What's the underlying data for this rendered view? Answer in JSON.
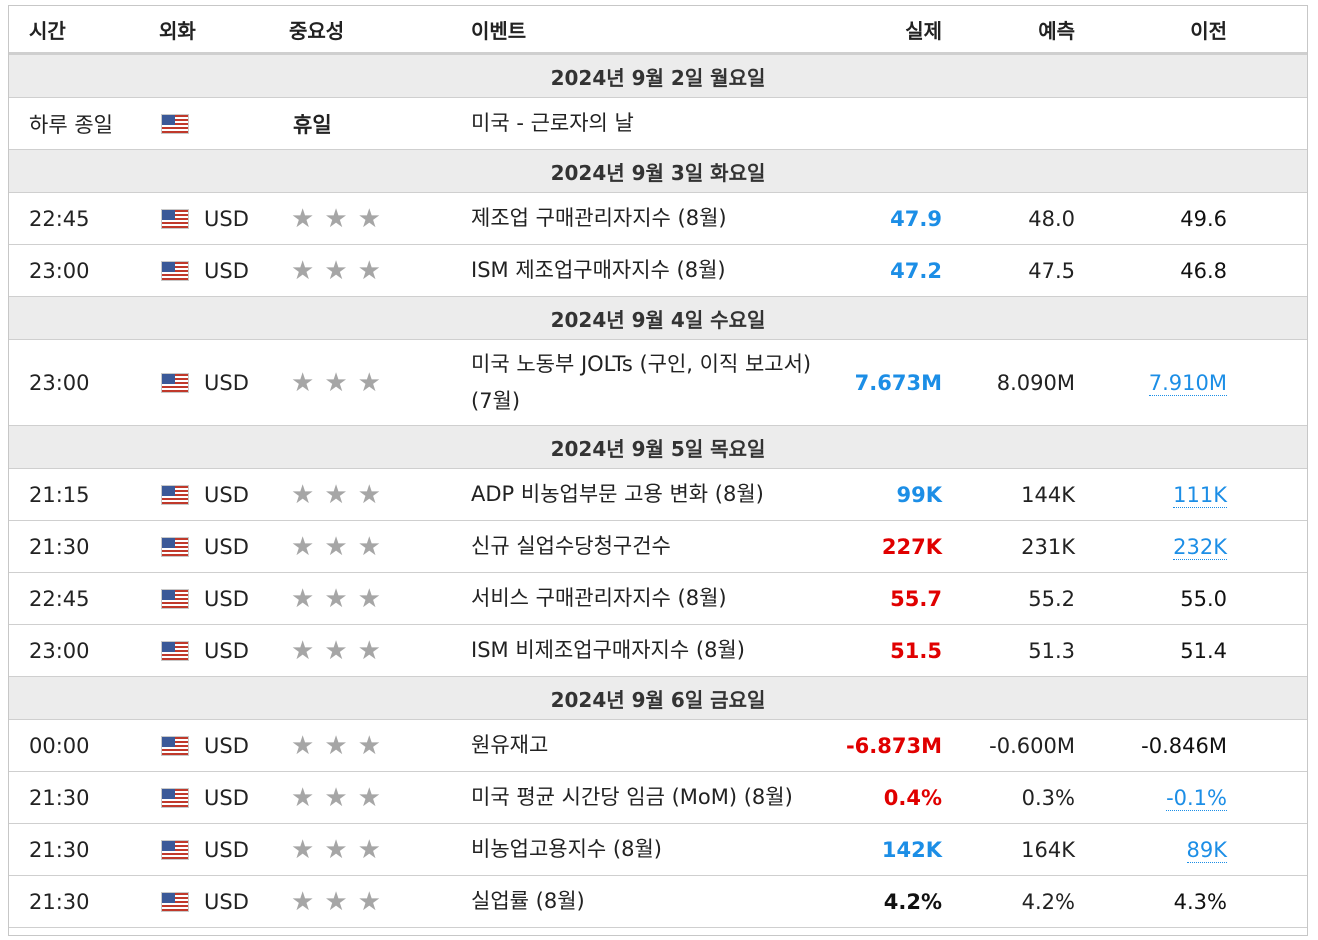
{
  "headers": {
    "time": "시간",
    "currency": "외화",
    "importance": "중요성",
    "event": "이벤트",
    "actual": "실제",
    "forecast": "예측",
    "previous": "이전"
  },
  "days": [
    {
      "date": "2024년 9월 2일 월요일",
      "events": [
        {
          "time": "하루 종일",
          "flag": "us-flag-icon",
          "currency": "",
          "holiday": "휴일",
          "event": "미국 - 근로자의 날",
          "actual": "",
          "actual_color": "",
          "forecast": "",
          "previous": "",
          "previous_link": false
        }
      ]
    },
    {
      "date": "2024년 9월 3일 화요일",
      "events": [
        {
          "time": "22:45",
          "flag": "us-flag-icon",
          "currency": "USD",
          "stars": 3,
          "event": "제조업 구매관리자지수 (8월)",
          "actual": "47.9",
          "actual_color": "#1c8ee6",
          "forecast": "48.0",
          "previous": "49.6",
          "previous_link": false
        },
        {
          "time": "23:00",
          "flag": "us-flag-icon",
          "currency": "USD",
          "stars": 3,
          "event": "ISM 제조업구매자지수 (8월)",
          "actual": "47.2",
          "actual_color": "#1c8ee6",
          "forecast": "47.5",
          "previous": "46.8",
          "previous_link": false
        }
      ]
    },
    {
      "date": "2024년 9월 4일 수요일",
      "events": [
        {
          "time": "23:00",
          "flag": "us-flag-icon",
          "currency": "USD",
          "stars": 3,
          "event": "미국 노동부 JOLTs (구인, 이직 보고서) (7월)",
          "actual": "7.673M",
          "actual_color": "#1c8ee6",
          "forecast": "8.090M",
          "previous": "7.910M",
          "previous_link": true,
          "tall": true
        }
      ]
    },
    {
      "date": "2024년 9월 5일 목요일",
      "events": [
        {
          "time": "21:15",
          "flag": "us-flag-icon",
          "currency": "USD",
          "stars": 3,
          "event": "ADP 비농업부문 고용 변화 (8월)",
          "actual": "99K",
          "actual_color": "#1c8ee6",
          "forecast": "144K",
          "previous": "111K",
          "previous_link": true
        },
        {
          "time": "21:30",
          "flag": "us-flag-icon",
          "currency": "USD",
          "stars": 3,
          "event": "신규 실업수당청구건수",
          "actual": "227K",
          "actual_color": "#e00000",
          "forecast": "231K",
          "previous": "232K",
          "previous_link": true
        },
        {
          "time": "22:45",
          "flag": "us-flag-icon",
          "currency": "USD",
          "stars": 3,
          "event": "서비스 구매관리자지수 (8월)",
          "actual": "55.7",
          "actual_color": "#e00000",
          "forecast": "55.2",
          "previous": "55.0",
          "previous_link": false
        },
        {
          "time": "23:00",
          "flag": "us-flag-icon",
          "currency": "USD",
          "stars": 3,
          "event": "ISM 비제조업구매자지수 (8월)",
          "actual": "51.5",
          "actual_color": "#e00000",
          "forecast": "51.3",
          "previous": "51.4",
          "previous_link": false
        }
      ]
    },
    {
      "date": "2024년 9월 6일 금요일",
      "events": [
        {
          "time": "00:00",
          "flag": "us-flag-icon",
          "currency": "USD",
          "stars": 3,
          "event": "원유재고",
          "actual": "-6.873M",
          "actual_color": "#e00000",
          "forecast": "-0.600M",
          "previous": "-0.846M",
          "previous_link": false
        },
        {
          "time": "21:30",
          "flag": "us-flag-icon",
          "currency": "USD",
          "stars": 3,
          "event": "미국 평균 시간당 임금 (MoM) (8월)",
          "actual": "0.4%",
          "actual_color": "#e00000",
          "forecast": "0.3%",
          "previous": "-0.1%",
          "previous_link": true
        },
        {
          "time": "21:30",
          "flag": "us-flag-icon",
          "currency": "USD",
          "stars": 3,
          "event": "비농업고용지수 (8월)",
          "actual": "142K",
          "actual_color": "#1c8ee6",
          "forecast": "164K",
          "previous": "89K",
          "previous_link": true
        },
        {
          "time": "21:30",
          "flag": "us-flag-icon",
          "currency": "USD",
          "stars": 3,
          "event": "실업률 (8월)",
          "actual": "4.2%",
          "actual_color": "#111111",
          "forecast": "4.2%",
          "previous": "4.3%",
          "previous_link": false
        }
      ]
    }
  ]
}
